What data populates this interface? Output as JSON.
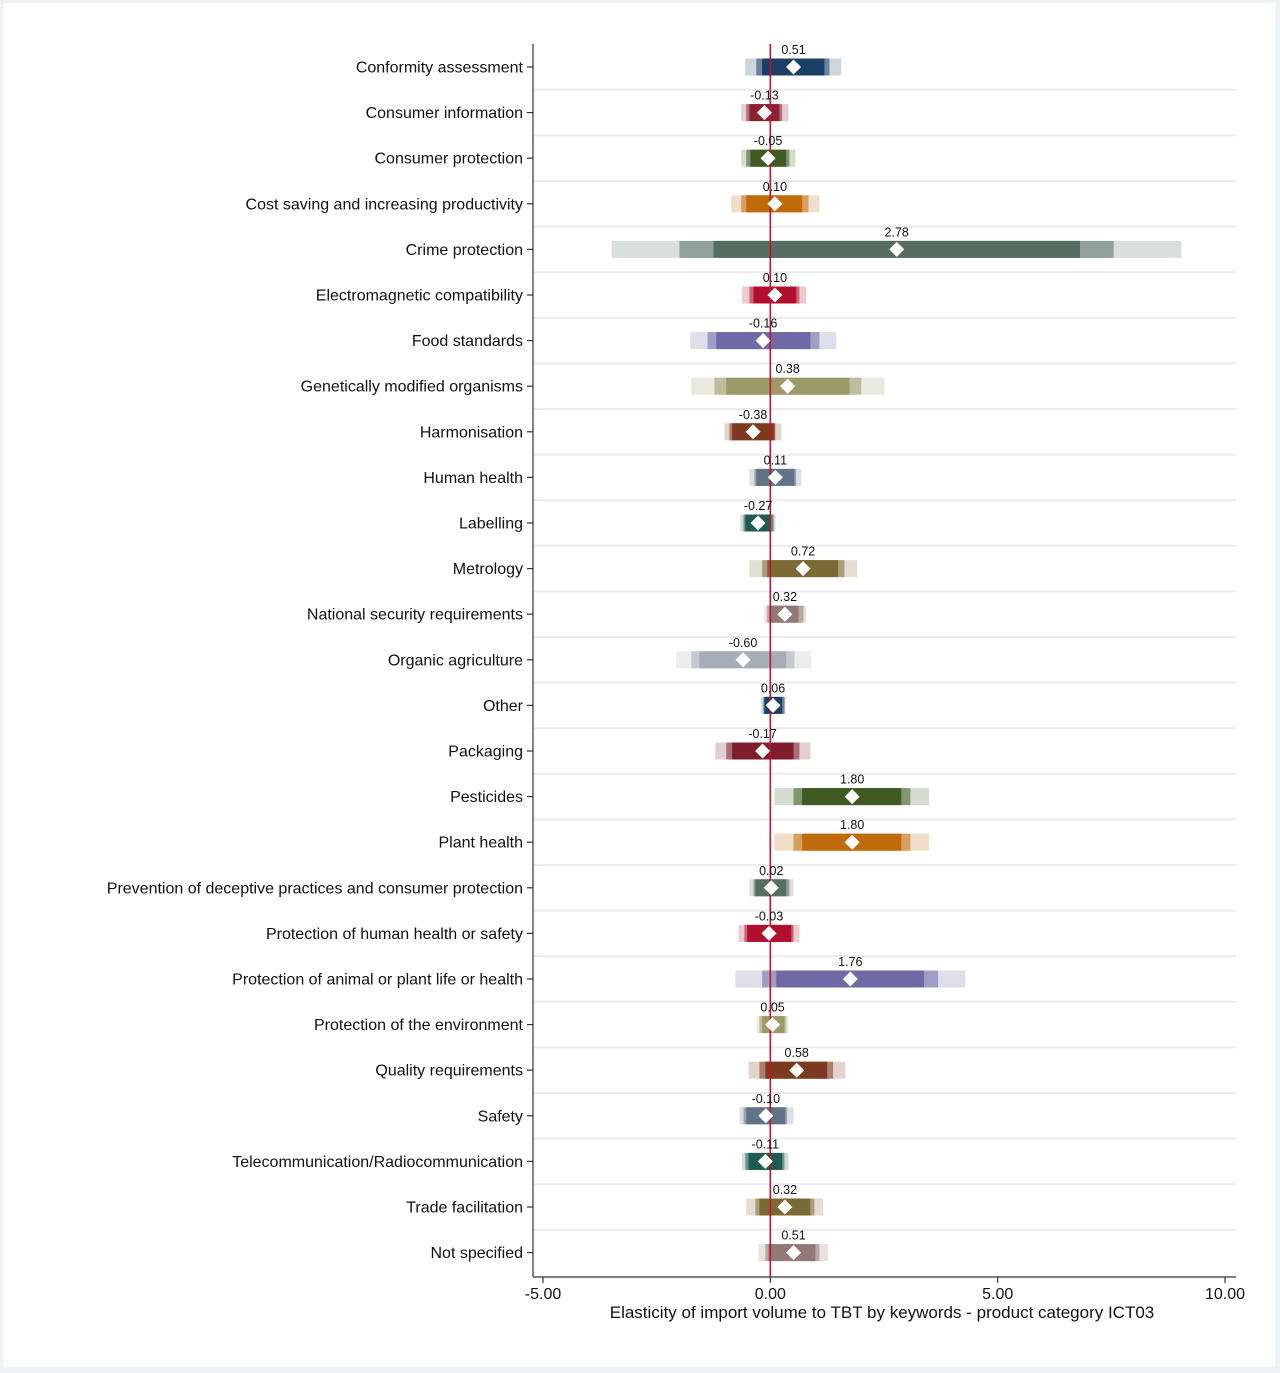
{
  "chart_data": {
    "type": "coefficient-plot",
    "title": "",
    "xlabel": "Elasticity of import volume to TBT by keywords - product category ICT03",
    "ylabel": "",
    "xlim": [
      -5.0,
      10.0
    ],
    "xticks": [
      -5.0,
      0.0,
      5.0,
      10.0
    ],
    "xtick_labels": [
      "-5.00",
      "0.00",
      "5.00",
      "10.00"
    ],
    "reference_line": {
      "x": 0,
      "color": "#c8102e"
    },
    "grid": "horizontal",
    "marker": "white diamond",
    "bands_note": "Three nested interval bands per estimate: outer (lightest), middle, inner (darkest)",
    "rows": [
      {
        "label": "Conformity assessment",
        "value": 0.51,
        "value_label": "0.51",
        "color": "#1b3f66",
        "outer": [
          -0.55,
          1.56
        ],
        "middle": [
          -0.31,
          1.3
        ],
        "inner": [
          -0.18,
          1.19
        ]
      },
      {
        "label": "Consumer information",
        "value": -0.13,
        "value_label": "-0.13",
        "color": "#8b2232",
        "outer": [
          -0.64,
          0.4
        ],
        "middle": [
          -0.53,
          0.26
        ],
        "inner": [
          -0.46,
          0.2
        ]
      },
      {
        "label": "Consumer protection",
        "value": -0.05,
        "value_label": "-0.05",
        "color": "#3f5a23",
        "outer": [
          -0.64,
          0.55
        ],
        "middle": [
          -0.53,
          0.42
        ],
        "inner": [
          -0.44,
          0.35
        ]
      },
      {
        "label": "Cost saving and increasing productivity",
        "value": 0.1,
        "value_label": "0.10",
        "color": "#c06a0a",
        "outer": [
          -0.86,
          1.08
        ],
        "middle": [
          -0.64,
          0.84
        ],
        "inner": [
          -0.53,
          0.7
        ]
      },
      {
        "label": "Crime protection",
        "value": 2.78,
        "value_label": "2.78",
        "color": "#566d63",
        "outer": [
          -3.49,
          9.04
        ],
        "middle": [
          -2.0,
          7.55
        ],
        "inner": [
          -1.25,
          6.81
        ]
      },
      {
        "label": "Electromagnetic compatibility",
        "value": 0.1,
        "value_label": "0.10",
        "color": "#b0102e",
        "outer": [
          -0.62,
          0.79
        ],
        "middle": [
          -0.46,
          0.64
        ],
        "inner": [
          -0.37,
          0.57
        ]
      },
      {
        "label": "Food standards",
        "value": -0.16,
        "value_label": "-0.16",
        "color": "#6f6aa6",
        "outer": [
          -1.76,
          1.45
        ],
        "middle": [
          -1.38,
          1.08
        ],
        "inner": [
          -1.19,
          0.88
        ]
      },
      {
        "label": "Genetically modified organisms",
        "value": 0.38,
        "value_label": "0.38",
        "color": "#9d9a68",
        "outer": [
          -1.74,
          2.51
        ],
        "middle": [
          -1.23,
          2.0
        ],
        "inner": [
          -0.97,
          1.74
        ]
      },
      {
        "label": "Harmonisation",
        "value": -0.38,
        "value_label": "-0.38",
        "color": "#7e3a1e",
        "outer": [
          -1.01,
          0.24
        ],
        "middle": [
          -0.9,
          0.11
        ],
        "inner": [
          -0.84,
          0.09
        ]
      },
      {
        "label": "Human health",
        "value": 0.11,
        "value_label": "0.11",
        "color": "#617487",
        "outer": [
          -0.46,
          0.68
        ],
        "middle": [
          -0.35,
          0.57
        ],
        "inner": [
          -0.31,
          0.53
        ]
      },
      {
        "label": "Labelling",
        "value": -0.27,
        "value_label": "-0.27",
        "color": "#1f5b52",
        "outer": [
          -0.66,
          0.11
        ],
        "middle": [
          -0.59,
          0.07
        ],
        "inner": [
          -0.55,
          0.02
        ]
      },
      {
        "label": "Metrology",
        "value": 0.72,
        "value_label": "0.72",
        "color": "#7b6a36",
        "outer": [
          -0.46,
          1.91
        ],
        "middle": [
          -0.18,
          1.63
        ],
        "inner": [
          -0.07,
          1.49
        ]
      },
      {
        "label": "National security requirements",
        "value": 0.32,
        "value_label": "0.32",
        "color": "#927876",
        "outer": [
          -0.13,
          0.79
        ],
        "middle": [
          -0.07,
          0.73
        ],
        "inner": [
          0.0,
          0.62
        ]
      },
      {
        "label": "Organic agriculture",
        "value": -0.6,
        "value_label": "-0.60",
        "color": "#a6adb6",
        "outer": [
          -2.07,
          0.9
        ],
        "middle": [
          -1.74,
          0.53
        ],
        "inner": [
          -1.56,
          0.35
        ]
      },
      {
        "label": "Other",
        "value": 0.06,
        "value_label": "0.06",
        "color": "#1b3f66",
        "outer": [
          -0.2,
          0.33
        ],
        "middle": [
          -0.15,
          0.31
        ],
        "inner": [
          -0.13,
          0.26
        ]
      },
      {
        "label": "Packaging",
        "value": -0.17,
        "value_label": "-0.17",
        "color": "#7e1e2a",
        "outer": [
          -1.21,
          0.88
        ],
        "middle": [
          -0.97,
          0.64
        ],
        "inner": [
          -0.84,
          0.51
        ]
      },
      {
        "label": "Pesticides",
        "value": 1.8,
        "value_label": "1.80",
        "color": "#3f5a23",
        "outer": [
          0.09,
          3.49
        ],
        "middle": [
          0.51,
          3.08
        ],
        "inner": [
          0.7,
          2.88
        ]
      },
      {
        "label": "Plant health",
        "value": 1.8,
        "value_label": "1.80",
        "color": "#c06a0a",
        "outer": [
          0.09,
          3.49
        ],
        "middle": [
          0.51,
          3.08
        ],
        "inner": [
          0.7,
          2.88
        ]
      },
      {
        "label": "Prevention of deceptive practices and consumer protection",
        "value": 0.02,
        "value_label": "0.02",
        "color": "#566d63",
        "outer": [
          -0.46,
          0.51
        ],
        "middle": [
          -0.37,
          0.42
        ],
        "inner": [
          -0.33,
          0.35
        ]
      },
      {
        "label": "Protection of human health or safety",
        "value": -0.03,
        "value_label": "-0.03",
        "color": "#b0102e",
        "outer": [
          -0.7,
          0.64
        ],
        "middle": [
          -0.57,
          0.51
        ],
        "inner": [
          -0.51,
          0.46
        ]
      },
      {
        "label": "Protection of animal or plant life or health",
        "value": 1.76,
        "value_label": "1.76",
        "color": "#6f6aa6",
        "outer": [
          -0.77,
          4.29
        ],
        "middle": [
          -0.18,
          3.69
        ],
        "inner": [
          0.13,
          3.38
        ]
      },
      {
        "label": "Protection of the environment",
        "value": 0.05,
        "value_label": "0.05",
        "color": "#9d9a68",
        "outer": [
          -0.29,
          0.4
        ],
        "middle": [
          -0.24,
          0.35
        ],
        "inner": [
          -0.18,
          0.31
        ]
      },
      {
        "label": "Quality requirements",
        "value": 0.58,
        "value_label": "0.58",
        "color": "#7e3a1e",
        "outer": [
          -0.48,
          1.65
        ],
        "middle": [
          -0.24,
          1.38
        ],
        "inner": [
          -0.11,
          1.25
        ]
      },
      {
        "label": "Safety",
        "value": -0.1,
        "value_label": "-0.10",
        "color": "#617487",
        "outer": [
          -0.68,
          0.51
        ],
        "middle": [
          -0.59,
          0.37
        ],
        "inner": [
          -0.53,
          0.33
        ]
      },
      {
        "label": "Telecommunication/Radiocommunication",
        "value": -0.11,
        "value_label": "-0.11",
        "color": "#1f5b52",
        "outer": [
          -0.62,
          0.4
        ],
        "middle": [
          -0.55,
          0.31
        ],
        "inner": [
          -0.48,
          0.26
        ]
      },
      {
        "label": "Trade facilitation",
        "value": 0.32,
        "value_label": "0.32",
        "color": "#7b6a36",
        "outer": [
          -0.53,
          1.16
        ],
        "middle": [
          -0.33,
          0.97
        ],
        "inner": [
          -0.24,
          0.88
        ]
      },
      {
        "label": "Not specified",
        "value": 0.51,
        "value_label": "0.51",
        "color": "#927876",
        "outer": [
          -0.26,
          1.27
        ],
        "middle": [
          -0.11,
          1.08
        ],
        "inner": [
          -0.04,
          0.99
        ]
      }
    ]
  }
}
